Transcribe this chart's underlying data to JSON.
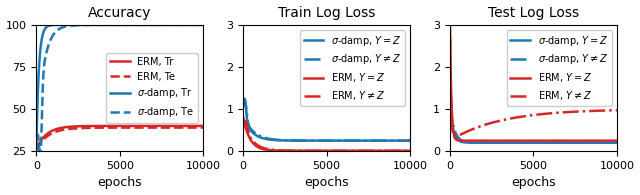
{
  "fig_width": 6.4,
  "fig_height": 1.95,
  "dpi": 100,
  "bg_color": "#ffffff",
  "plots": [
    {
      "title": "Accuracy",
      "xlabel": "epochs",
      "xlim": [
        0,
        10000
      ],
      "ylim": [
        25,
        100
      ],
      "yticks": [
        25,
        50,
        75,
        100
      ],
      "xticks": [
        0,
        5000,
        10000
      ]
    },
    {
      "title": "Train Log Loss",
      "xlabel": "epochs",
      "xlim": [
        0,
        10000
      ],
      "ylim": [
        0,
        3
      ],
      "yticks": [
        0,
        1,
        2,
        3
      ],
      "xticks": [
        0,
        5000,
        10000
      ]
    },
    {
      "title": "Test Log Loss",
      "xlabel": "epochs",
      "xlim": [
        0,
        10000
      ],
      "ylim": [
        0,
        3
      ],
      "yticks": [
        0,
        1,
        2,
        3
      ],
      "xticks": [
        0,
        5000,
        10000
      ]
    }
  ],
  "colors": {
    "red": "#d62728",
    "blue": "#1f77b4"
  }
}
